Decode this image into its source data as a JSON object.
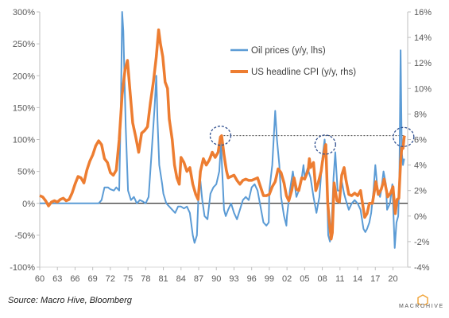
{
  "chart_data": {
    "type": "line",
    "title": "",
    "xlabel": "",
    "ylabel": "",
    "x_tick_labels": [
      "60",
      "63",
      "66",
      "69",
      "72",
      "75",
      "78",
      "81",
      "84",
      "87",
      "90",
      "93",
      "96",
      "99",
      "02",
      "05",
      "08",
      "11",
      "14",
      "17",
      "20"
    ],
    "x_range": [
      1960,
      2022.5
    ],
    "y_left": {
      "ticks": [
        "-100%",
        "-50%",
        "0%",
        "50%",
        "100%",
        "150%",
        "200%",
        "250%",
        "300%"
      ],
      "range": [
        -100,
        300
      ],
      "unit": "%"
    },
    "y_right": {
      "ticks": [
        "-4%",
        "-2%",
        "0%",
        "2%",
        "4%",
        "6%",
        "8%",
        "10%",
        "12%",
        "14%",
        "16%"
      ],
      "range": [
        -4,
        16
      ],
      "unit": "%"
    },
    "legend": {
      "position": "upper-middle",
      "entries": [
        "Oil prices (y/y, lhs)",
        "US headline CPI (y/y, rhs)"
      ]
    },
    "series": [
      {
        "name": "Oil prices (y/y, lhs)",
        "axis": "left",
        "color": "#5b9bd5",
        "points": [
          [
            1960,
            0
          ],
          [
            1961,
            0
          ],
          [
            1962,
            0
          ],
          [
            1963,
            0
          ],
          [
            1964,
            0
          ],
          [
            1965,
            0
          ],
          [
            1966,
            0
          ],
          [
            1967,
            0
          ],
          [
            1968,
            0
          ],
          [
            1969,
            0
          ],
          [
            1970,
            0
          ],
          [
            1970.5,
            5
          ],
          [
            1971,
            25
          ],
          [
            1971.6,
            25
          ],
          [
            1972,
            22
          ],
          [
            1972.6,
            20
          ],
          [
            1973,
            25
          ],
          [
            1973.5,
            20
          ],
          [
            1973.8,
            160
          ],
          [
            1974,
            300
          ],
          [
            1974.2,
            270
          ],
          [
            1974.6,
            120
          ],
          [
            1975,
            20
          ],
          [
            1975.5,
            5
          ],
          [
            1976,
            10
          ],
          [
            1976.5,
            0
          ],
          [
            1977,
            5
          ],
          [
            1977.5,
            3
          ],
          [
            1978,
            0
          ],
          [
            1978.5,
            10
          ],
          [
            1979,
            80
          ],
          [
            1979.5,
            150
          ],
          [
            1979.8,
            200
          ],
          [
            1980,
            130
          ],
          [
            1980.3,
            60
          ],
          [
            1980.8,
            30
          ],
          [
            1981,
            15
          ],
          [
            1981.5,
            0
          ],
          [
            1982,
            -5
          ],
          [
            1982.5,
            -10
          ],
          [
            1983,
            -15
          ],
          [
            1983.5,
            -5
          ],
          [
            1984,
            -5
          ],
          [
            1984.5,
            -8
          ],
          [
            1985,
            -5
          ],
          [
            1985.5,
            -15
          ],
          [
            1986,
            -50
          ],
          [
            1986.3,
            -62
          ],
          [
            1986.7,
            -50
          ],
          [
            1987,
            20
          ],
          [
            1987.3,
            35
          ],
          [
            1987.6,
            5
          ],
          [
            1988,
            -20
          ],
          [
            1988.5,
            -25
          ],
          [
            1989,
            15
          ],
          [
            1989.5,
            25
          ],
          [
            1990,
            30
          ],
          [
            1990.5,
            50
          ],
          [
            1990.8,
            95
          ],
          [
            1991,
            50
          ],
          [
            1991.3,
            -10
          ],
          [
            1991.6,
            -20
          ],
          [
            1992,
            -10
          ],
          [
            1992.5,
            0
          ],
          [
            1993,
            -15
          ],
          [
            1993.5,
            -25
          ],
          [
            1994,
            -10
          ],
          [
            1994.5,
            5
          ],
          [
            1995,
            10
          ],
          [
            1995.5,
            5
          ],
          [
            1996,
            25
          ],
          [
            1996.5,
            30
          ],
          [
            1997,
            20
          ],
          [
            1997.5,
            -5
          ],
          [
            1998,
            -30
          ],
          [
            1998.5,
            -35
          ],
          [
            1998.9,
            -30
          ],
          [
            1999,
            20
          ],
          [
            1999.5,
            60
          ],
          [
            2000,
            145
          ],
          [
            2000.3,
            100
          ],
          [
            2000.7,
            60
          ],
          [
            2001,
            10
          ],
          [
            2001.5,
            -20
          ],
          [
            2001.9,
            -35
          ],
          [
            2002,
            -20
          ],
          [
            2002.5,
            20
          ],
          [
            2003,
            50
          ],
          [
            2003.3,
            30
          ],
          [
            2003.6,
            10
          ],
          [
            2004,
            20
          ],
          [
            2004.5,
            40
          ],
          [
            2004.8,
            60
          ],
          [
            2005,
            40
          ],
          [
            2005.5,
            55
          ],
          [
            2006,
            40
          ],
          [
            2006.5,
            10
          ],
          [
            2007,
            -15
          ],
          [
            2007.5,
            10
          ],
          [
            2008,
            70
          ],
          [
            2008.4,
            100
          ],
          [
            2008.7,
            60
          ],
          [
            2009,
            -50
          ],
          [
            2009.3,
            -60
          ],
          [
            2009.6,
            -30
          ],
          [
            2009.9,
            40
          ],
          [
            2010.2,
            80
          ],
          [
            2010.6,
            20
          ],
          [
            2011,
            20
          ],
          [
            2011.3,
            35
          ],
          [
            2011.7,
            15
          ],
          [
            2012,
            5
          ],
          [
            2012.5,
            -10
          ],
          [
            2013,
            0
          ],
          [
            2013.5,
            5
          ],
          [
            2014,
            0
          ],
          [
            2014.5,
            -10
          ],
          [
            2015,
            -40
          ],
          [
            2015.3,
            -45
          ],
          [
            2015.6,
            -40
          ],
          [
            2016,
            -30
          ],
          [
            2016.3,
            -15
          ],
          [
            2016.7,
            20
          ],
          [
            2017,
            60
          ],
          [
            2017.4,
            20
          ],
          [
            2017.8,
            10
          ],
          [
            2018,
            20
          ],
          [
            2018.4,
            50
          ],
          [
            2018.8,
            30
          ],
          [
            2019,
            -10
          ],
          [
            2019.5,
            0
          ],
          [
            2019.9,
            30
          ],
          [
            2020.1,
            -20
          ],
          [
            2020.3,
            -70
          ],
          [
            2020.6,
            -30
          ],
          [
            2020.9,
            -20
          ],
          [
            2021.1,
            40
          ],
          [
            2021.3,
            240
          ],
          [
            2021.5,
            80
          ],
          [
            2021.7,
            60
          ],
          [
            2021.9,
            70
          ]
        ]
      },
      {
        "name": "US headline CPI (y/y, rhs)",
        "axis": "right",
        "color": "#ed7d31",
        "points": [
          [
            1960,
            1.6
          ],
          [
            1960.5,
            1.5
          ],
          [
            1961,
            1.2
          ],
          [
            1961.5,
            0.8
          ],
          [
            1962,
            1.1
          ],
          [
            1962.5,
            1.2
          ],
          [
            1963,
            1.1
          ],
          [
            1963.5,
            1.3
          ],
          [
            1964,
            1.4
          ],
          [
            1964.5,
            1.2
          ],
          [
            1965,
            1.3
          ],
          [
            1965.5,
            1.8
          ],
          [
            1966,
            2.5
          ],
          [
            1966.5,
            3.1
          ],
          [
            1967,
            3.0
          ],
          [
            1967.5,
            2.6
          ],
          [
            1968,
            3.6
          ],
          [
            1968.5,
            4.3
          ],
          [
            1969,
            4.8
          ],
          [
            1969.5,
            5.5
          ],
          [
            1970,
            5.9
          ],
          [
            1970.5,
            5.6
          ],
          [
            1971,
            4.5
          ],
          [
            1971.5,
            4.2
          ],
          [
            1972,
            3.4
          ],
          [
            1972.5,
            3.2
          ],
          [
            1973,
            3.6
          ],
          [
            1973.5,
            6.0
          ],
          [
            1974,
            9.5
          ],
          [
            1974.5,
            11.5
          ],
          [
            1974.9,
            12.2
          ],
          [
            1975.3,
            10
          ],
          [
            1975.8,
            7.3
          ],
          [
            1976.3,
            6.2
          ],
          [
            1976.8,
            5.0
          ],
          [
            1977.3,
            6.5
          ],
          [
            1977.8,
            6.7
          ],
          [
            1978.3,
            7.0
          ],
          [
            1978.8,
            8.9
          ],
          [
            1979.3,
            10.5
          ],
          [
            1979.8,
            12.5
          ],
          [
            1980.2,
            14.6
          ],
          [
            1980.5,
            13.5
          ],
          [
            1980.9,
            12.5
          ],
          [
            1981.3,
            10.5
          ],
          [
            1981.7,
            10
          ],
          [
            1982,
            7.6
          ],
          [
            1982.5,
            6.0
          ],
          [
            1982.9,
            4.0
          ],
          [
            1983.3,
            3.0
          ],
          [
            1983.7,
            2.5
          ],
          [
            1984,
            4.6
          ],
          [
            1984.5,
            4.2
          ],
          [
            1985,
            3.5
          ],
          [
            1985.5,
            3.8
          ],
          [
            1986,
            2.5
          ],
          [
            1986.5,
            1.7
          ],
          [
            1986.9,
            1.3
          ],
          [
            1987.3,
            3.5
          ],
          [
            1987.8,
            4.5
          ],
          [
            1988.3,
            4.0
          ],
          [
            1988.8,
            4.4
          ],
          [
            1989.3,
            5.0
          ],
          [
            1989.8,
            4.6
          ],
          [
            1990.3,
            5.0
          ],
          [
            1990.7,
            6.2
          ],
          [
            1990.9,
            6.3
          ],
          [
            1991.3,
            4.8
          ],
          [
            1991.7,
            3.6
          ],
          [
            1992,
            3.0
          ],
          [
            1992.5,
            3.1
          ],
          [
            1993,
            3.2
          ],
          [
            1993.5,
            2.8
          ],
          [
            1994,
            2.5
          ],
          [
            1994.5,
            2.8
          ],
          [
            1995,
            2.9
          ],
          [
            1995.5,
            2.8
          ],
          [
            1996,
            2.8
          ],
          [
            1996.5,
            2.9
          ],
          [
            1997,
            3.0
          ],
          [
            1997.5,
            2.3
          ],
          [
            1998,
            1.6
          ],
          [
            1998.5,
            1.6
          ],
          [
            1999,
            1.7
          ],
          [
            1999.5,
            2.3
          ],
          [
            2000,
            2.7
          ],
          [
            2000.5,
            3.7
          ],
          [
            2001,
            3.4
          ],
          [
            2001.5,
            2.6
          ],
          [
            2001.9,
            1.6
          ],
          [
            2002.3,
            1.2
          ],
          [
            2002.8,
            2.0
          ],
          [
            2003.2,
            3.0
          ],
          [
            2003.6,
            2.1
          ],
          [
            2004,
            2.0
          ],
          [
            2004.5,
            3.0
          ],
          [
            2005,
            2.9
          ],
          [
            2005.6,
            3.6
          ],
          [
            2005.8,
            4.5
          ],
          [
            2006,
            3.8
          ],
          [
            2006.5,
            4.2
          ],
          [
            2006.9,
            2.0
          ],
          [
            2007.3,
            2.6
          ],
          [
            2007.8,
            3.5
          ],
          [
            2008,
            4.2
          ],
          [
            2008.5,
            5.5
          ],
          [
            2008.6,
            5.6
          ],
          [
            2008.9,
            1.1
          ],
          [
            2009.2,
            -0.5
          ],
          [
            2009.5,
            -1.8
          ],
          [
            2009.7,
            -1.3
          ],
          [
            2010,
            2.6
          ],
          [
            2010.5,
            1.2
          ],
          [
            2010.9,
            1.1
          ],
          [
            2011.3,
            3.2
          ],
          [
            2011.7,
            3.8
          ],
          [
            2012,
            2.9
          ],
          [
            2012.5,
            1.7
          ],
          [
            2013,
            1.6
          ],
          [
            2013.5,
            1.8
          ],
          [
            2014,
            1.6
          ],
          [
            2014.5,
            2.0
          ],
          [
            2014.9,
            0.8
          ],
          [
            2015.2,
            -0.1
          ],
          [
            2015.6,
            0.2
          ],
          [
            2016,
            1.0
          ],
          [
            2016.5,
            1.0
          ],
          [
            2016.9,
            2.1
          ],
          [
            2017.1,
            2.7
          ],
          [
            2017.5,
            1.7
          ],
          [
            2018,
            2.1
          ],
          [
            2018.5,
            2.9
          ],
          [
            2018.9,
            2.0
          ],
          [
            2019.1,
            1.5
          ],
          [
            2019.6,
            1.8
          ],
          [
            2020,
            2.3
          ],
          [
            2020.4,
            0.2
          ],
          [
            2020.7,
            1.3
          ],
          [
            2021,
            1.4
          ],
          [
            2021.3,
            4.2
          ],
          [
            2021.5,
            5.4
          ],
          [
            2021.7,
            5.3
          ],
          [
            2021.9,
            6.2
          ],
          [
            2022,
            6.3
          ]
        ]
      }
    ],
    "annotations": {
      "highlight_circles": [
        {
          "x": 1990.7,
          "y_right": 6.3
        },
        {
          "x": 2008.5,
          "y_right": 5.6
        },
        {
          "x": 2021.8,
          "y_right": 6.2
        }
      ],
      "reference_line": {
        "style": "dotted",
        "y_right": 6.3,
        "x_from": 1990.7,
        "x_to": 2021.8
      }
    }
  },
  "footer": {
    "source": "Source: Macro Hive, Bloomberg",
    "logo_text": "MACROHIVE",
    "logo_color": "#f0a030"
  }
}
